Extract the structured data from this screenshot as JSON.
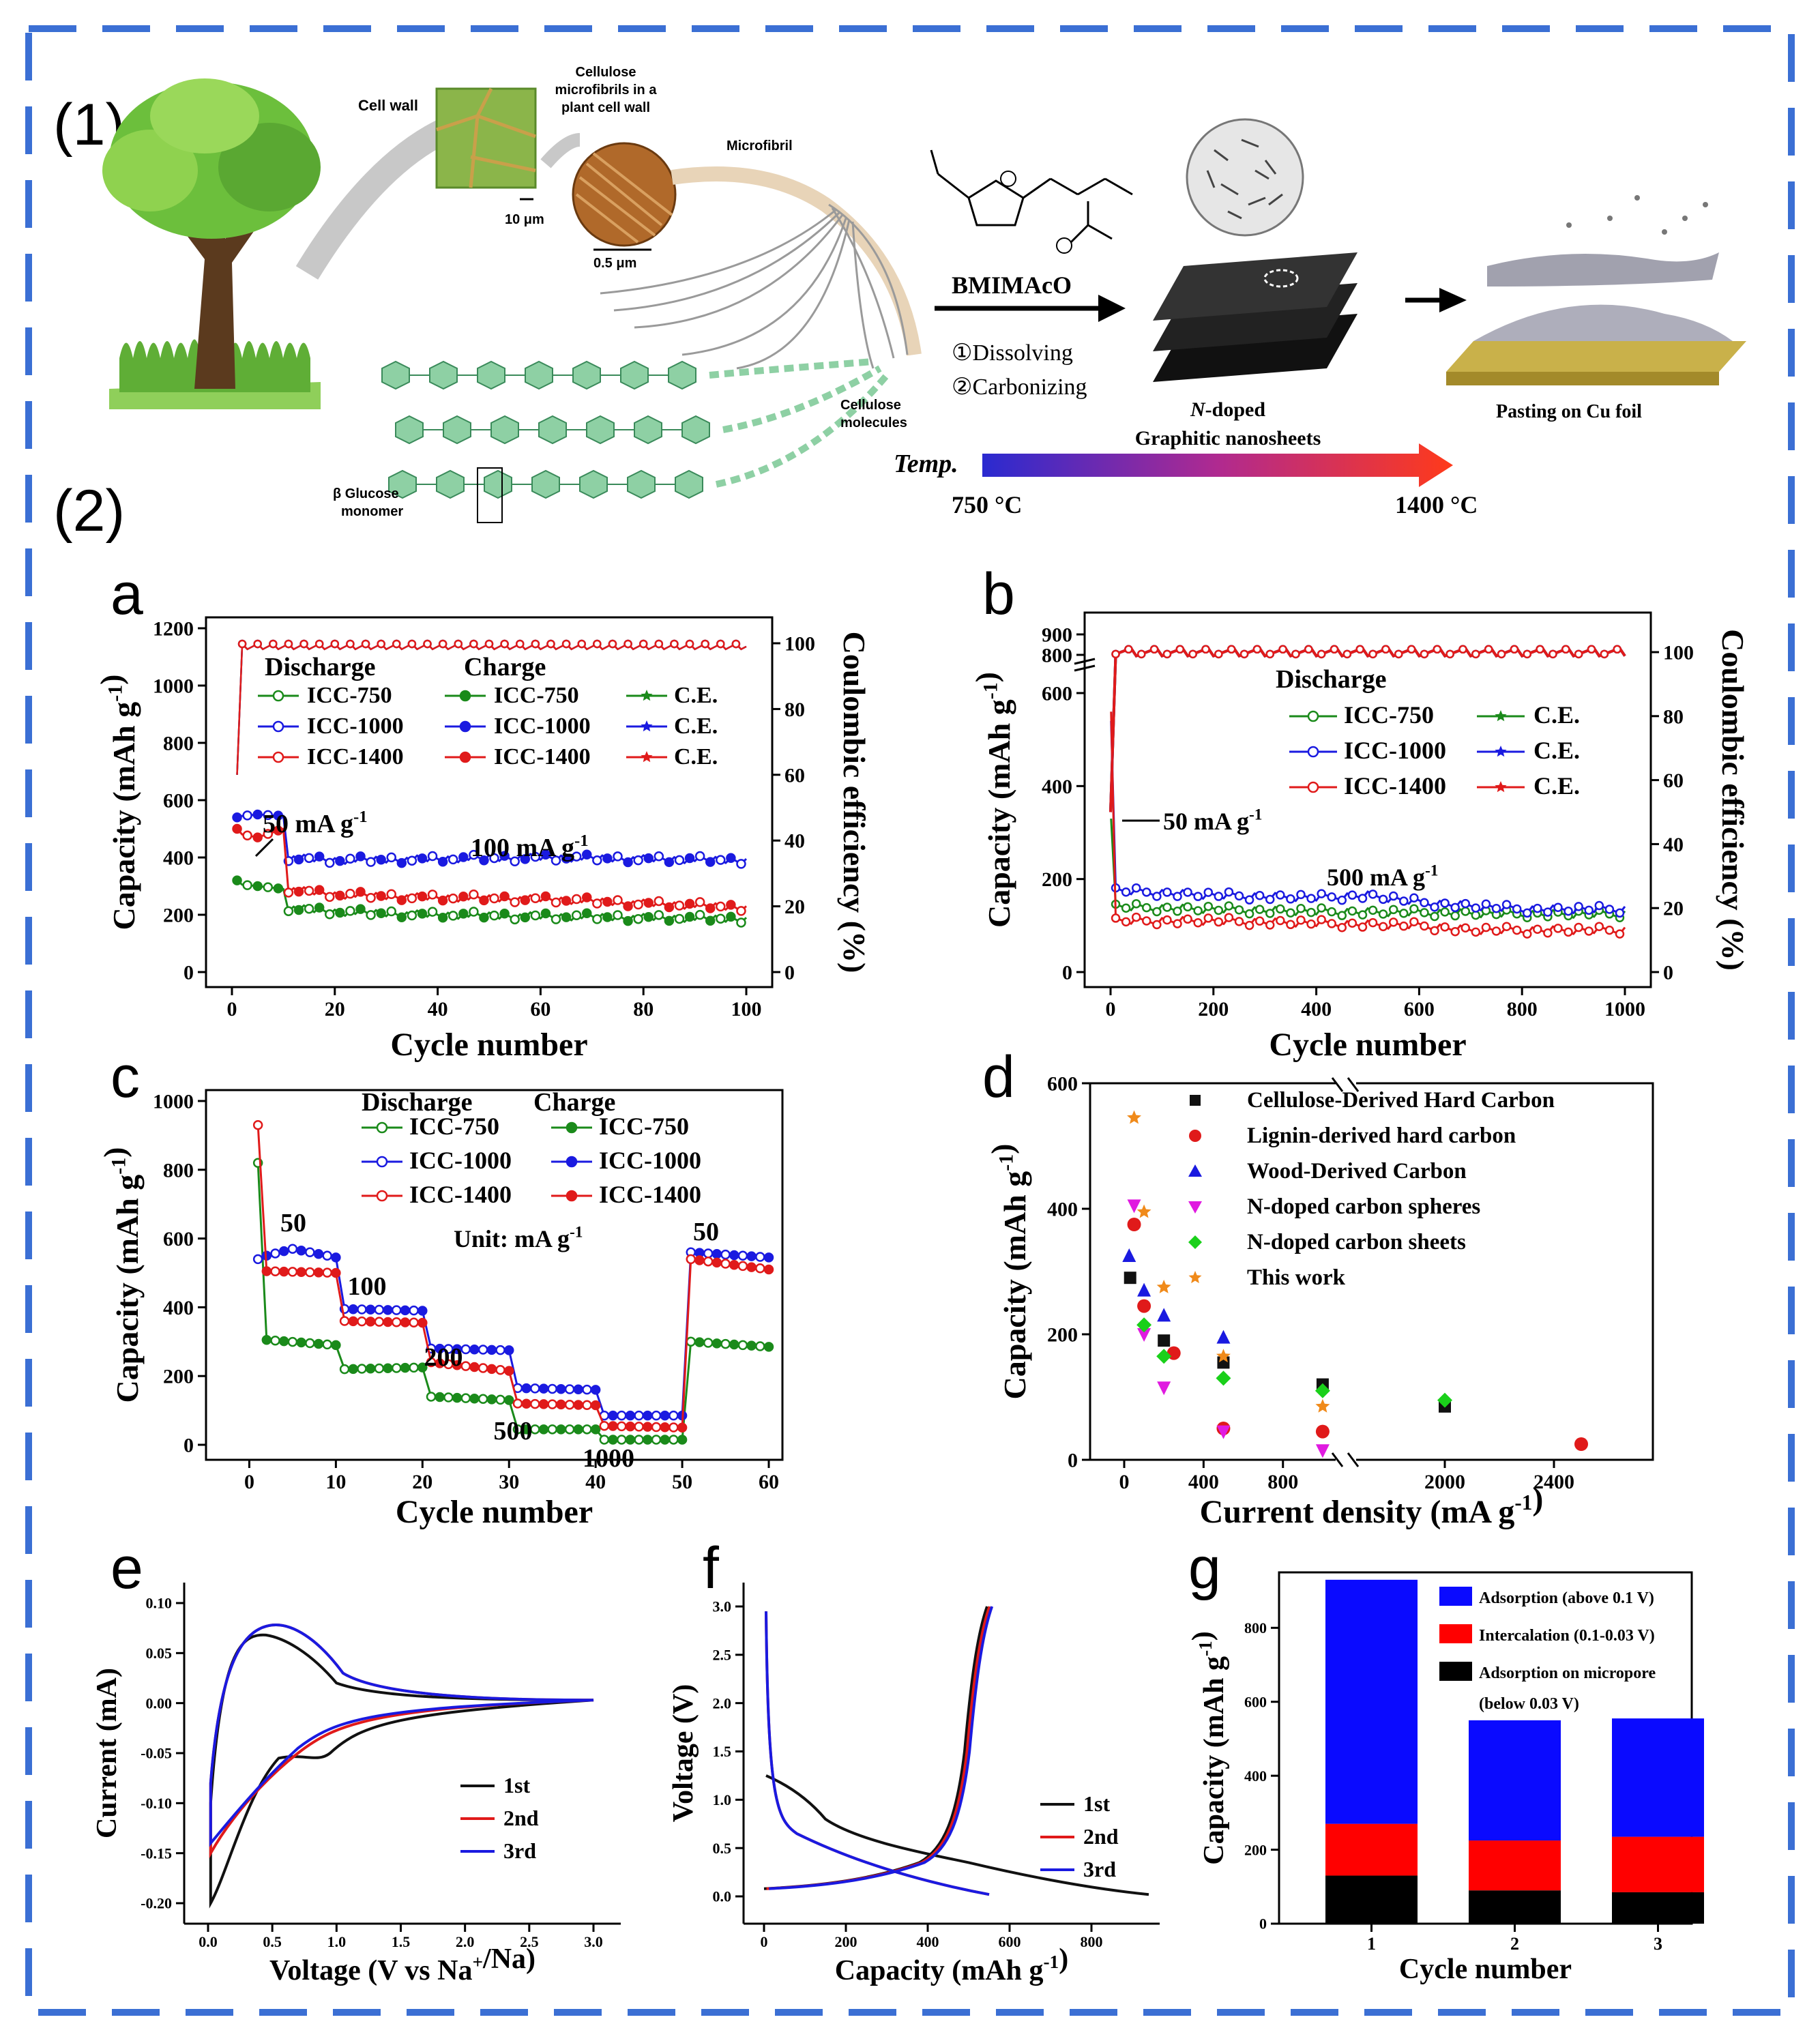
{
  "figure": {
    "section1_label": "(1)",
    "section2_label": "(2)",
    "scheme": {
      "cell_wall": "Cell wall",
      "cellulose_microfibrils": [
        "Cellulose",
        "microfibrils in a",
        "plant cell wall"
      ],
      "microfibril": "Microfibril",
      "scale_10um": "10 μm",
      "scale_05um": "0.5 μm",
      "glucose_monomer": [
        "β Glucose",
        "monomer"
      ],
      "cellulose_molecules": [
        "Cellulose",
        "molecules"
      ],
      "reagent": "BMIMAcO",
      "step1": "①Dissolving",
      "step2": "②Carbonizing",
      "product": [
        "N-doped",
        "Graphitic nanosheets"
      ],
      "product_italic": "N",
      "pasting": "Pasting on Cu foil",
      "temp_label": "Temp.",
      "temp_low": "750 °C",
      "temp_high": "1400 °C",
      "colors": {
        "tree_green": "#6cbf3c",
        "trunk": "#5b3a1e",
        "temp_start": "#2a2ad0",
        "temp_end": "#ff3a1a"
      }
    }
  },
  "chart_data": [
    {
      "panel": "a",
      "type": "line",
      "xlabel": "Cycle number",
      "ylabel": "Capacity (mAh g-1)",
      "y2label": "Coulombic efficiency (%)",
      "xlim": [
        0,
        100
      ],
      "ylim": [
        0,
        1200
      ],
      "y2lim": [
        0,
        100
      ],
      "xticks": [
        0,
        20,
        40,
        60,
        80,
        100
      ],
      "yticks": [
        0,
        200,
        400,
        600,
        800,
        1000,
        1200
      ],
      "y2ticks": [
        0,
        20,
        40,
        60,
        80,
        100
      ],
      "legend_headers": [
        "Discharge",
        "Charge"
      ],
      "legend": [
        {
          "d": "ICC-750",
          "c": "ICC-750",
          "ce": "C.E.",
          "color": "#1a8a1a"
        },
        {
          "d": "ICC-1000",
          "c": "ICC-1000",
          "ce": "C.E.",
          "color": "#1a1ae0"
        },
        {
          "d": "ICC-1400",
          "c": "ICC-1400",
          "ce": "C.E.",
          "color": "#e01a1a"
        }
      ],
      "annotations": [
        "50 mA g-1",
        "100 mA g-1"
      ],
      "series": [
        {
          "name": "ICC-750",
          "color": "#1a8a1a",
          "x": [
            1,
            2,
            5,
            10,
            11,
            20,
            40,
            60,
            80,
            100
          ],
          "values": [
            320,
            305,
            300,
            290,
            225,
            210,
            200,
            195,
            190,
            185
          ]
        },
        {
          "name": "ICC-1000",
          "color": "#1a1ae0",
          "x": [
            1,
            2,
            5,
            10,
            11,
            20,
            40,
            60,
            80,
            100
          ],
          "values": [
            540,
            545,
            550,
            545,
            400,
            390,
            395,
            400,
            395,
            390
          ]
        },
        {
          "name": "ICC-1400",
          "color": "#e01a1a",
          "x": [
            1,
            2,
            5,
            10,
            11,
            20,
            40,
            60,
            80,
            100
          ],
          "values": [
            500,
            480,
            470,
            500,
            290,
            270,
            260,
            255,
            240,
            225
          ]
        }
      ],
      "ce_value": 99
    },
    {
      "panel": "b",
      "type": "line",
      "xlabel": "Cycle number",
      "ylabel": "Capacity (mAh g-1)",
      "y2label": "Coulombic efficiency (%)",
      "xlim": [
        0,
        1000
      ],
      "xticks": [
        0,
        200,
        400,
        600,
        800,
        1000
      ],
      "yticks": [
        0,
        200,
        400,
        600,
        800,
        900
      ],
      "y2ticks": [
        0,
        20,
        40,
        60,
        80,
        100
      ],
      "legend_header": "Discharge",
      "legend": [
        {
          "d": "ICC-750",
          "ce": "C.E.",
          "color": "#1a8a1a"
        },
        {
          "d": "ICC-1000",
          "ce": "C.E.",
          "color": "#1a1ae0"
        },
        {
          "d": "ICC-1400",
          "ce": "C.E.",
          "color": "#e01a1a"
        }
      ],
      "annotations": [
        "50 mA g-1",
        "500 mA g-1"
      ],
      "series": [
        {
          "name": "ICC-750",
          "color": "#1a8a1a",
          "x": [
            10,
            200,
            400,
            600,
            800,
            1000
          ],
          "values": [
            140,
            135,
            130,
            128,
            125,
            125
          ]
        },
        {
          "name": "ICC-1000",
          "color": "#1a1ae0",
          "x": [
            10,
            200,
            400,
            500,
            600,
            800,
            1000
          ],
          "values": [
            175,
            165,
            160,
            165,
            150,
            135,
            135
          ]
        },
        {
          "name": "ICC-1400",
          "color": "#e01a1a",
          "x": [
            10,
            200,
            400,
            600,
            700,
            800,
            1000
          ],
          "values": [
            110,
            110,
            105,
            100,
            90,
            90,
            90
          ]
        }
      ],
      "ce_value": 100
    },
    {
      "panel": "c",
      "type": "line",
      "xlabel": "Cycle number",
      "ylabel": "Capacity (mAh g-1)",
      "xlim": [
        -5,
        60
      ],
      "ylim": [
        0,
        1000
      ],
      "xticks": [
        0,
        10,
        20,
        30,
        40,
        50,
        60
      ],
      "yticks": [
        0,
        200,
        400,
        600,
        800,
        1000
      ],
      "legend_headers": [
        "Discharge",
        "Charge"
      ],
      "legend": [
        {
          "d": "ICC-750",
          "c": "ICC-750",
          "color": "#1a8a1a"
        },
        {
          "d": "ICC-1000",
          "c": "ICC-1000",
          "color": "#1a1ae0"
        },
        {
          "d": "ICC-1400",
          "c": "ICC-1400",
          "color": "#e01a1a"
        }
      ],
      "unit_label": "Unit: mA g-1",
      "rate_labels": [
        "50",
        "100",
        "200",
        "500",
        "1000",
        "50"
      ],
      "series": [
        {
          "name": "ICC-750",
          "color": "#1a8a1a",
          "x": [
            1,
            2,
            10,
            11,
            20,
            21,
            30,
            31,
            40,
            41,
            50,
            51,
            60
          ],
          "values": [
            310,
            305,
            290,
            220,
            225,
            140,
            130,
            45,
            45,
            15,
            15,
            300,
            285
          ]
        },
        {
          "name": "ICC-1000",
          "color": "#1a1ae0",
          "x": [
            1,
            2,
            5,
            10,
            11,
            20,
            21,
            30,
            31,
            40,
            41,
            50,
            51,
            60
          ],
          "values": [
            540,
            550,
            570,
            545,
            395,
            390,
            280,
            275,
            165,
            160,
            85,
            85,
            560,
            545
          ]
        },
        {
          "name": "ICC-1400",
          "color": "#e01a1a",
          "x": [
            1,
            2,
            10,
            11,
            20,
            21,
            30,
            31,
            40,
            41,
            50,
            51,
            60
          ],
          "values": [
            500,
            505,
            500,
            360,
            355,
            240,
            215,
            120,
            115,
            55,
            50,
            540,
            510
          ]
        }
      ],
      "first_cycle": [
        {
          "name": "ICC-1400",
          "value": 930
        },
        {
          "name": "ICC-750",
          "value": 820
        }
      ]
    },
    {
      "panel": "d",
      "type": "scatter",
      "xlabel": "Current density (mA g-1)",
      "ylabel": "Capacity (mAh g-1)",
      "ylim": [
        0,
        600
      ],
      "xticks": [
        0,
        400,
        800,
        2000,
        2400
      ],
      "yticks": [
        0,
        200,
        400,
        600
      ],
      "series": [
        {
          "name": "Cellulose-Derived Hard Carbon",
          "color": "#111111",
          "marker": "square",
          "points": [
            [
              30,
              290
            ],
            [
              200,
              190
            ],
            [
              500,
              155
            ],
            [
              1000,
              120
            ],
            [
              2000,
              85
            ]
          ]
        },
        {
          "name": "Lignin-derived hard carbon",
          "color": "#e01a1a",
          "marker": "circle",
          "points": [
            [
              50,
              375
            ],
            [
              100,
              245
            ],
            [
              250,
              170
            ],
            [
              500,
              50
            ],
            [
              1000,
              45
            ],
            [
              2500,
              25
            ]
          ]
        },
        {
          "name": "Wood-Derived Carbon",
          "color": "#1a1ae0",
          "marker": "triangle",
          "points": [
            [
              25,
              325
            ],
            [
              100,
              270
            ],
            [
              200,
              230
            ],
            [
              500,
              195
            ]
          ]
        },
        {
          "name": "N-doped carbon spheres",
          "color": "#e01ae0",
          "marker": "triangle-down",
          "points": [
            [
              50,
              405
            ],
            [
              100,
              200
            ],
            [
              200,
              115
            ],
            [
              500,
              45
            ],
            [
              1000,
              15
            ]
          ]
        },
        {
          "name": "N-doped carbon sheets",
          "color": "#1ad01a",
          "marker": "diamond",
          "points": [
            [
              100,
              215
            ],
            [
              200,
              165
            ],
            [
              500,
              130
            ],
            [
              1000,
              110
            ],
            [
              2000,
              95
            ]
          ]
        },
        {
          "name": "This work",
          "color": "#f08a1a",
          "marker": "star",
          "points": [
            [
              50,
              545
            ],
            [
              100,
              395
            ],
            [
              200,
              275
            ],
            [
              500,
              165
            ],
            [
              1000,
              85
            ]
          ]
        }
      ]
    },
    {
      "panel": "e",
      "type": "line",
      "xlabel": "Voltage (V vs Na+/Na)",
      "ylabel": "Current (mA)",
      "xlim": [
        0,
        3
      ],
      "ylim": [
        -0.2,
        0.1
      ],
      "xticks": [
        0.0,
        0.5,
        1.0,
        1.5,
        2.0,
        2.5,
        3.0
      ],
      "yticks": [
        0.1,
        0.05,
        0.0,
        -0.05,
        -0.1,
        -0.15,
        -0.2
      ],
      "legend": [
        "1st",
        "2nd",
        "3rd"
      ],
      "series": [
        {
          "name": "1st",
          "color": "#111111"
        },
        {
          "name": "2nd",
          "color": "#e01a1a"
        },
        {
          "name": "3rd",
          "color": "#1a1ae0"
        }
      ]
    },
    {
      "panel": "f",
      "type": "line",
      "xlabel": "Capacity (mAh g-1)",
      "ylabel": "Voltage (V)",
      "xlim": [
        0,
        950
      ],
      "ylim": [
        0,
        3
      ],
      "xticks": [
        0,
        200,
        400,
        600,
        800
      ],
      "yticks": [
        0.0,
        0.5,
        1.0,
        1.5,
        2.0,
        2.5,
        3.0
      ],
      "legend": [
        "1st",
        "2nd",
        "3rd"
      ],
      "series": [
        {
          "name": "1st",
          "color": "#111111"
        },
        {
          "name": "2nd",
          "color": "#e01a1a"
        },
        {
          "name": "3rd",
          "color": "#1a1ae0"
        }
      ]
    },
    {
      "panel": "g",
      "type": "bar",
      "xlabel": "Cycle number",
      "ylabel": "Capacity (mAh g-1)",
      "categories": [
        "1",
        "2",
        "3"
      ],
      "ylim": [
        0,
        950
      ],
      "yticks": [
        0,
        200,
        400,
        600,
        800
      ],
      "series": [
        {
          "name": "Adsorption on micropore",
          "name2": "(below 0.03 V)",
          "color": "#000000",
          "values": [
            130,
            90,
            85
          ]
        },
        {
          "name": "Intercalation (0.1-0.03 V)",
          "color": "#ff0000",
          "values": [
            140,
            135,
            150
          ]
        },
        {
          "name": "Adsorption (above 0.1 V)",
          "color": "#0a0aff",
          "values": [
            660,
            325,
            320
          ]
        }
      ]
    }
  ]
}
